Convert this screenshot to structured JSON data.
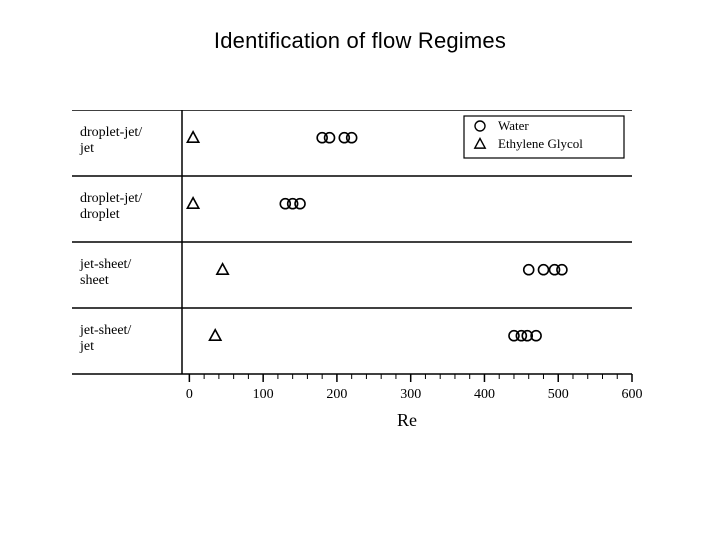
{
  "title": "Identification of flow Regimes",
  "chart": {
    "type": "categorical-scatter",
    "background_color": "#ffffff",
    "axis_color": "#000000",
    "axis_stroke_width": 1.5,
    "text_color": "#000000",
    "ylabel_font_family": "Times New Roman, serif",
    "ylabel_fontsize": 14,
    "tick_fontsize": 14,
    "axis_title_fontsize": 18,
    "x_axis": {
      "label": "Re",
      "xlim": [
        -10,
        600
      ],
      "ticks": [
        0,
        100,
        200,
        300,
        400,
        500,
        600
      ],
      "minor_tick_step": 20
    },
    "rows": [
      {
        "label_line1": "droplet-jet/",
        "label_line2": "jet"
      },
      {
        "label_line1": "droplet-jet/",
        "label_line2": "droplet"
      },
      {
        "label_line1": "jet-sheet/",
        "label_line2": "sheet"
      },
      {
        "label_line1": "jet-sheet/",
        "label_line2": "jet"
      }
    ],
    "series": [
      {
        "name": "Water",
        "marker": "circle",
        "color": "#000000",
        "marker_size": 5,
        "stroke_width": 1.6
      },
      {
        "name": "Ethylene Glycol",
        "marker": "triangle",
        "color": "#000000",
        "marker_size": 6,
        "stroke_width": 1.6
      }
    ],
    "points": [
      {
        "row": 0,
        "series": 1,
        "x": 5
      },
      {
        "row": 0,
        "series": 0,
        "x": 180
      },
      {
        "row": 0,
        "series": 0,
        "x": 190
      },
      {
        "row": 0,
        "series": 0,
        "x": 210
      },
      {
        "row": 0,
        "series": 0,
        "x": 220
      },
      {
        "row": 1,
        "series": 1,
        "x": 5
      },
      {
        "row": 1,
        "series": 0,
        "x": 130
      },
      {
        "row": 1,
        "series": 0,
        "x": 140
      },
      {
        "row": 1,
        "series": 0,
        "x": 150
      },
      {
        "row": 2,
        "series": 1,
        "x": 45
      },
      {
        "row": 2,
        "series": 0,
        "x": 460
      },
      {
        "row": 2,
        "series": 0,
        "x": 480
      },
      {
        "row": 2,
        "series": 0,
        "x": 495
      },
      {
        "row": 2,
        "series": 0,
        "x": 505
      },
      {
        "row": 3,
        "series": 1,
        "x": 35
      },
      {
        "row": 3,
        "series": 0,
        "x": 440
      },
      {
        "row": 3,
        "series": 0,
        "x": 450
      },
      {
        "row": 3,
        "series": 0,
        "x": 458
      },
      {
        "row": 3,
        "series": 0,
        "x": 470
      }
    ],
    "legend": {
      "border_color": "#000000",
      "border_width": 1.2,
      "font_family": "Times New Roman, serif",
      "fontsize": 13,
      "position": "top-right"
    }
  }
}
